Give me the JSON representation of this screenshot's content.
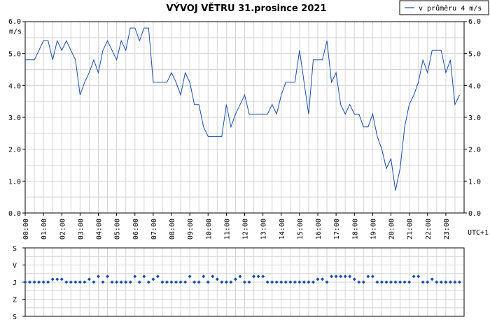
{
  "chart_data": [
    {
      "type": "line",
      "title": "VÝVOJ VĚTRU  31.prosince 2021",
      "legend": {
        "label": "v průměru 4 m/s",
        "placement": "top-right",
        "color": "#1a4ba8"
      },
      "ylabel": "m/s",
      "ylim": [
        0,
        6
      ],
      "y_ticks": [
        "0.0",
        "1.0",
        "2.0",
        "3.0",
        "4.0",
        "5.0",
        "6.0"
      ],
      "x_ticks": [
        "00:00",
        "01:00",
        "02:00",
        "03:00",
        "04:00",
        "05:00",
        "06:00",
        "07:00",
        "08:00",
        "09:00",
        "10:00",
        "11:00",
        "12:00",
        "13:00",
        "14:00",
        "15:00",
        "16:00",
        "17:00",
        "18:00",
        "19:00",
        "20:00",
        "21:00",
        "22:00",
        "23:00"
      ],
      "xlabel": "UTC+1",
      "grid": true,
      "line_color": "#1a4ba8",
      "x_hours": [
        0,
        0.25,
        0.5,
        0.75,
        1,
        1.25,
        1.5,
        1.75,
        2,
        2.25,
        2.5,
        2.75,
        3,
        3.25,
        3.5,
        3.75,
        4,
        4.25,
        4.5,
        4.75,
        5,
        5.25,
        5.5,
        5.75,
        6,
        6.25,
        6.5,
        6.75,
        7,
        7.25,
        7.5,
        7.75,
        8,
        8.25,
        8.5,
        8.75,
        9,
        9.25,
        9.5,
        9.75,
        10,
        10.25,
        10.5,
        10.75,
        11,
        11.25,
        11.5,
        11.75,
        12,
        12.25,
        12.5,
        12.75,
        13,
        13.25,
        13.5,
        13.75,
        14,
        14.25,
        14.5,
        14.75,
        15,
        15.25,
        15.5,
        15.75,
        16,
        16.25,
        16.5,
        16.75,
        17,
        17.25,
        17.5,
        17.75,
        18,
        18.25,
        18.5,
        18.75,
        19,
        19.25,
        19.5,
        19.75,
        20,
        20.25,
        20.5,
        20.75,
        21,
        21.25,
        21.5,
        21.75,
        22,
        22.25,
        22.5,
        22.75,
        23,
        23.25,
        23.5,
        23.75
      ],
      "speed": [
        4.8,
        4.8,
        4.8,
        5.1,
        5.4,
        5.4,
        4.8,
        5.4,
        5.1,
        5.4,
        5.1,
        4.8,
        3.7,
        4.1,
        4.4,
        4.8,
        4.4,
        5.1,
        5.4,
        5.1,
        4.8,
        5.4,
        5.1,
        5.8,
        5.8,
        5.4,
        5.8,
        5.8,
        4.1,
        4.1,
        4.1,
        4.1,
        4.4,
        4.1,
        3.7,
        4.4,
        4.1,
        3.4,
        3.4,
        2.7,
        2.4,
        2.4,
        2.4,
        2.4,
        3.4,
        2.7,
        3.1,
        3.4,
        3.7,
        3.1,
        3.1,
        3.1,
        3.1,
        3.1,
        3.4,
        3.1,
        3.7,
        4.1,
        4.1,
        4.1,
        5.1,
        4.1,
        3.1,
        4.8,
        4.8,
        4.8,
        5.4,
        4.1,
        4.4,
        3.4,
        3.1,
        3.4,
        3.1,
        3.1,
        2.7,
        2.7,
        3.1,
        2.4,
        2.0,
        1.4,
        1.7,
        0.7,
        1.4,
        2.7,
        3.4,
        3.7,
        4.1,
        4.8,
        4.4,
        5.1,
        5.1,
        5.1,
        4.4,
        4.8,
        3.4,
        3.7
      ]
    },
    {
      "type": "scatter",
      "title": "",
      "y_categories": [
        "S",
        "V",
        "J",
        "Z",
        "S"
      ],
      "grid": true,
      "marker_color": "#1a4ba8",
      "x_hours": [
        0,
        0.25,
        0.5,
        0.75,
        1,
        1.25,
        1.5,
        1.75,
        2,
        2.25,
        2.5,
        2.75,
        3,
        3.25,
        3.5,
        3.75,
        4,
        4.25,
        4.5,
        4.75,
        5,
        5.25,
        5.5,
        5.75,
        6,
        6.25,
        6.5,
        6.75,
        7,
        7.25,
        7.5,
        7.75,
        8,
        8.25,
        8.5,
        8.75,
        9,
        9.25,
        9.5,
        9.75,
        10,
        10.25,
        10.5,
        10.75,
        11,
        11.25,
        11.5,
        11.75,
        12,
        12.25,
        12.5,
        12.75,
        13,
        13.25,
        13.5,
        13.75,
        14,
        14.25,
        14.5,
        14.75,
        15,
        15.25,
        15.5,
        15.75,
        16,
        16.25,
        16.5,
        16.75,
        17,
        17.25,
        17.5,
        17.75,
        18,
        18.25,
        18.5,
        18.75,
        19,
        19.25,
        19.5,
        19.75,
        20,
        20.25,
        20.5,
        20.75,
        21,
        21.25,
        21.5,
        21.75,
        22,
        22.25,
        22.5,
        22.75,
        23,
        23.25,
        23.5,
        23.75
      ],
      "direction_deg": [
        180,
        180,
        180,
        180,
        180,
        180,
        165,
        165,
        165,
        180,
        180,
        180,
        180,
        180,
        165,
        180,
        150,
        180,
        150,
        180,
        180,
        180,
        180,
        180,
        150,
        180,
        150,
        180,
        165,
        150,
        180,
        180,
        180,
        180,
        180,
        180,
        150,
        180,
        180,
        150,
        180,
        150,
        165,
        180,
        180,
        180,
        165,
        150,
        180,
        180,
        150,
        150,
        150,
        180,
        180,
        180,
        180,
        180,
        180,
        180,
        180,
        180,
        180,
        180,
        165,
        165,
        180,
        150,
        150,
        150,
        150,
        150,
        165,
        180,
        180,
        150,
        150,
        180,
        180,
        180,
        180,
        180,
        180,
        180,
        180,
        150,
        150,
        180,
        180,
        165,
        180,
        180,
        180,
        180,
        180,
        180
      ]
    }
  ]
}
